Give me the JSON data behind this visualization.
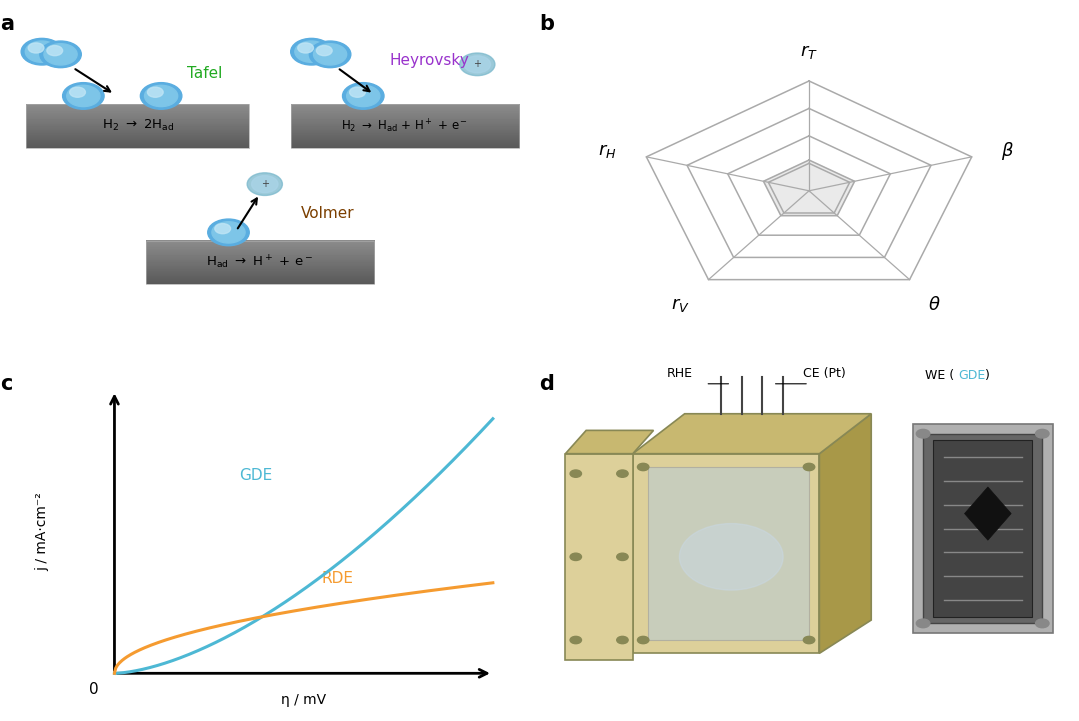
{
  "panel_labels": [
    "a",
    "b",
    "c",
    "d"
  ],
  "tafel_label": "Tafel",
  "tafel_color": "#22aa22",
  "heyrovsky_label": "Heyrovsky",
  "heyrovsky_color": "#9933cc",
  "volmer_label": "Volmer",
  "volmer_color": "#7B3F00",
  "radar_color": "#aaaaaa",
  "gde_color": "#4db8d4",
  "rde_color": "#f59b30",
  "gde_label": "GDE",
  "rde_label": "RDE",
  "j_label": "j / mA·cm⁻²",
  "eta_label": "η / mV",
  "bg_color": "#ffffff",
  "box_light": "#ddd09a",
  "box_mid": "#c8b870",
  "box_dark": "#a89848",
  "box_edge": "#888855"
}
